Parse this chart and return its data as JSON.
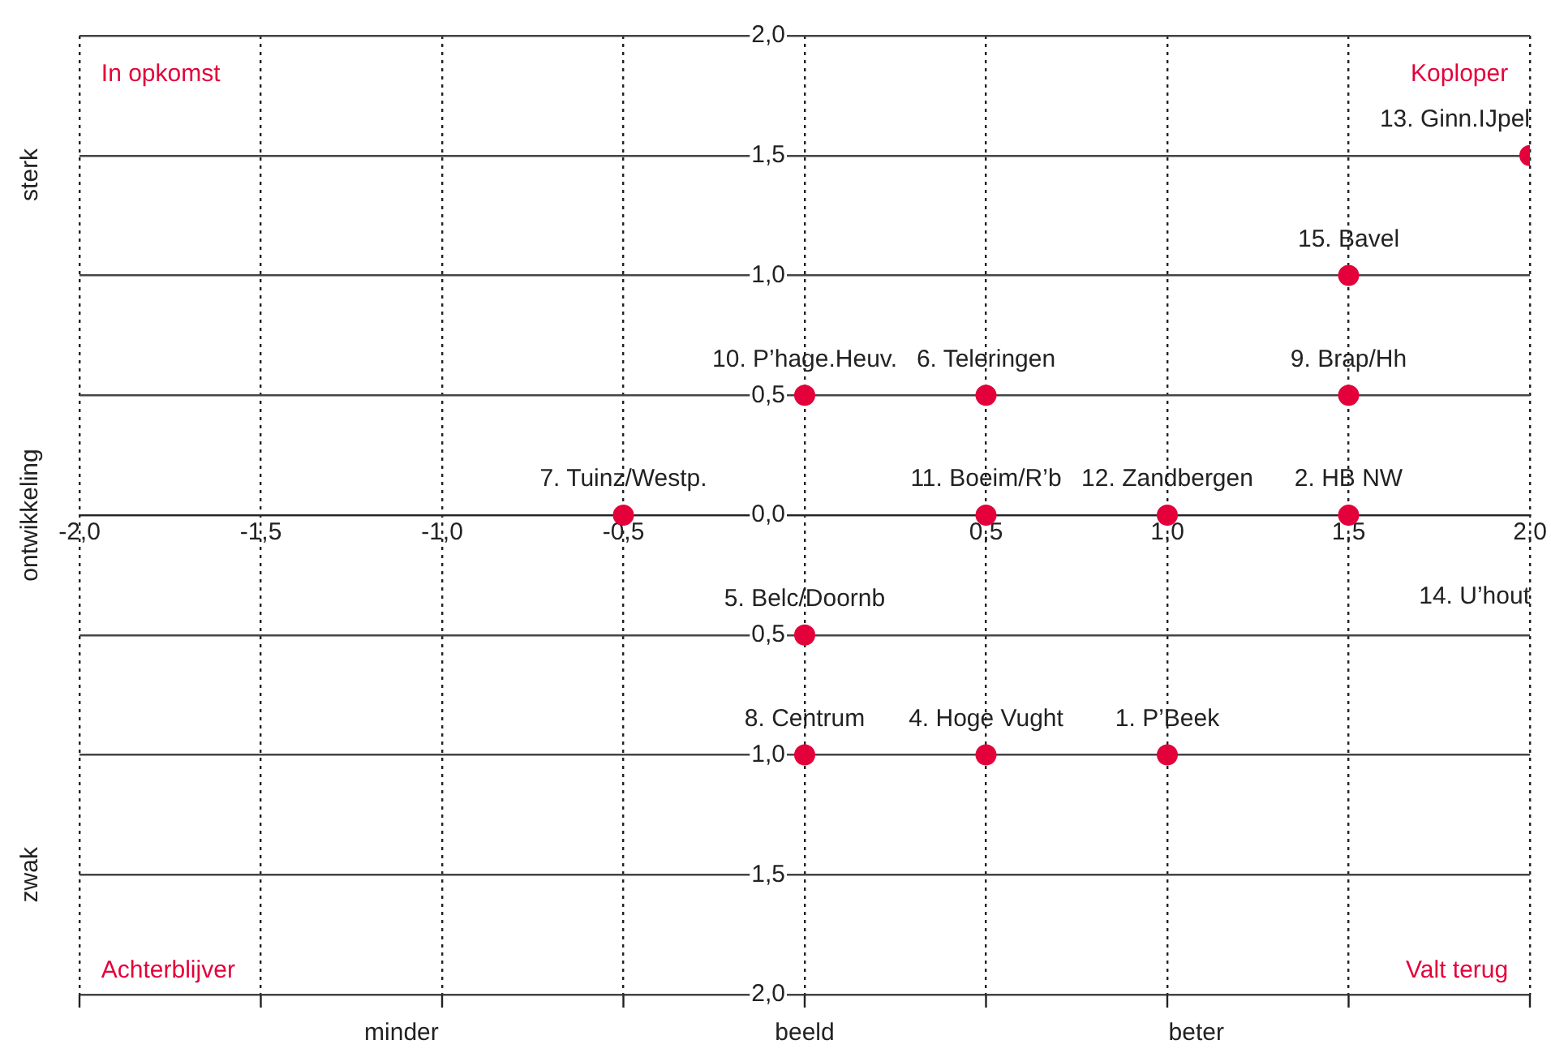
{
  "chart_data": {
    "type": "scatter",
    "xlabel": "beeld",
    "ylabel": "ontwikkeling",
    "xlim": [
      -2,
      2
    ],
    "ylim": [
      -2,
      2
    ],
    "xticks": [
      {
        "value": -2,
        "label": "-2,0"
      },
      {
        "value": -1.5,
        "label": "-1,5"
      },
      {
        "value": -1,
        "label": "-1,0"
      },
      {
        "value": -0.5,
        "label": "-0,5"
      },
      {
        "value": 0,
        "label": null
      },
      {
        "value": 0.5,
        "label": "0,5"
      },
      {
        "value": 1,
        "label": "1,0"
      },
      {
        "value": 1.5,
        "label": "1,5"
      },
      {
        "value": 2,
        "label": "2,0"
      }
    ],
    "yticks": [
      {
        "value": -2,
        "label": "2,0"
      },
      {
        "value": -1.5,
        "label": "1,5"
      },
      {
        "value": -1,
        "label": "1,0"
      },
      {
        "value": -0.5,
        "label": "0,5"
      },
      {
        "value": 0,
        "label": "0,0"
      },
      {
        "value": 0.5,
        "label": "0,5"
      },
      {
        "value": 1,
        "label": "1,0"
      },
      {
        "value": 1.5,
        "label": "1,5"
      },
      {
        "value": 2,
        "label": "2,0"
      }
    ],
    "grid": true,
    "legend": false,
    "marker": "circle",
    "series": [
      {
        "name": "1. P’Beek",
        "color": "#e4003a",
        "x": [
          1
        ],
        "values": [
          -1
        ]
      },
      {
        "name": "2. HB NW",
        "color": "#e4003a",
        "x": [
          1.5
        ],
        "values": [
          0
        ]
      },
      {
        "name": "4. Hoge Vught",
        "color": "#e4003a",
        "x": [
          0.5
        ],
        "values": [
          -1
        ]
      },
      {
        "name": "5. Belc/Doornb",
        "color": "#e4003a",
        "x": [
          0
        ],
        "values": [
          -0.5
        ]
      },
      {
        "name": "6. Teleringen",
        "color": "#e4003a",
        "x": [
          0.5
        ],
        "values": [
          0.5
        ]
      },
      {
        "name": "7. Tuinz/Westp.",
        "color": "#e4003a",
        "x": [
          -0.5
        ],
        "values": [
          0
        ]
      },
      {
        "name": "8. Centrum",
        "color": "#e4003a",
        "x": [
          0
        ],
        "values": [
          -1
        ]
      },
      {
        "name": "9. Brap/Hh",
        "color": "#e4003a",
        "x": [
          1.5
        ],
        "values": [
          0.5
        ]
      },
      {
        "name": "10. P’hage.Heuv.",
        "color": "#e4003a",
        "x": [
          0
        ],
        "values": [
          0.5
        ]
      },
      {
        "name": "11. Boeim/R’b",
        "color": "#e4003a",
        "x": [
          0.5
        ],
        "values": [
          0
        ]
      },
      {
        "name": "12. Zandbergen",
        "color": "#e4003a",
        "x": [
          1
        ],
        "values": [
          0
        ]
      },
      {
        "name": "13. Ginn.IJpel",
        "color": "#e4003a",
        "x": [
          2
        ],
        "values": [
          1.5
        ]
      },
      {
        "name": "15. Bavel",
        "color": "#e4003a",
        "x": [
          1.5
        ],
        "values": [
          1
        ]
      }
    ],
    "annotations": [
      "In opkomst",
      "Koploper",
      "Achterblijver",
      "Valt terug",
      "14. U’hout",
      "minder",
      "beter",
      "sterk",
      "zwak"
    ]
  }
}
